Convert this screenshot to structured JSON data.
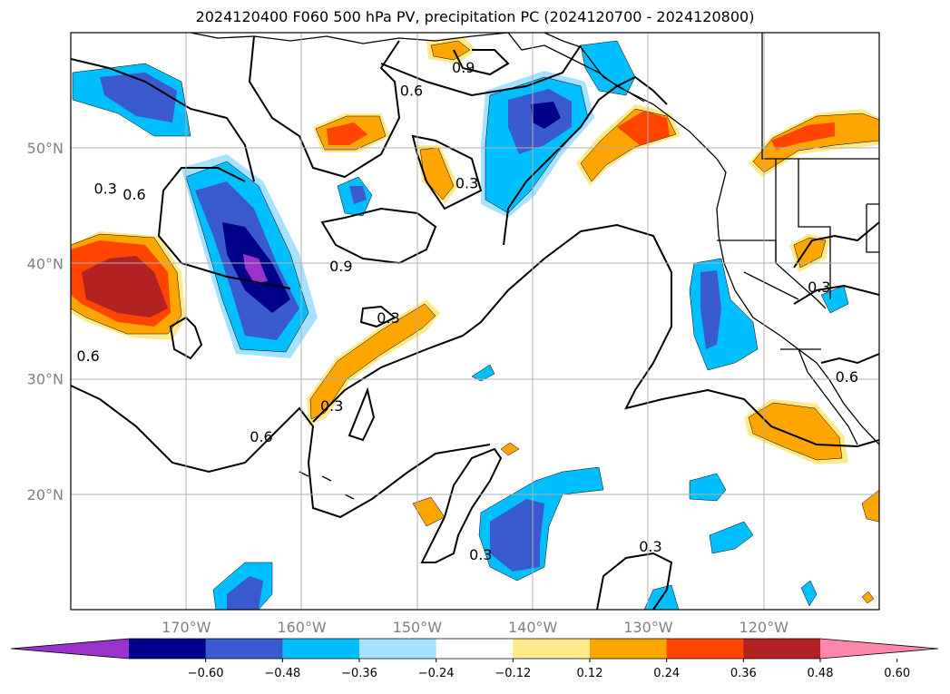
{
  "title": "2024120400 F060 500 hPa PV, precipitation PC (2024120700 - 2024120800)",
  "map": {
    "lon_range": [
      -180,
      -110
    ],
    "lat_range": [
      10,
      60
    ],
    "lon_ticks": [
      {
        "value": -170,
        "label": "170°W"
      },
      {
        "value": -160,
        "label": "160°W"
      },
      {
        "value": -150,
        "label": "150°W"
      },
      {
        "value": -140,
        "label": "140°W"
      },
      {
        "value": -130,
        "label": "130°W"
      },
      {
        "value": -120,
        "label": "120°W"
      }
    ],
    "lat_ticks": [
      {
        "value": 20,
        "label": "20°N"
      },
      {
        "value": 30,
        "label": "30°N"
      },
      {
        "value": 40,
        "label": "40°N"
      },
      {
        "value": 50,
        "label": "50°N"
      }
    ],
    "grid": true,
    "contour_labels": [
      {
        "text": "0.9",
        "lon": -146,
        "lat": 57
      },
      {
        "text": "0.6",
        "lon": -150.5,
        "lat": 55
      },
      {
        "text": "0.3",
        "lon": -177,
        "lat": 46.5
      },
      {
        "text": "0.6",
        "lon": -174.5,
        "lat": 46
      },
      {
        "text": "0.3",
        "lon": -145.7,
        "lat": 47
      },
      {
        "text": "0.9",
        "lon": -156.6,
        "lat": 39.8
      },
      {
        "text": "0.3",
        "lon": -152.5,
        "lat": 35.3
      },
      {
        "text": "0.6",
        "lon": -178.5,
        "lat": 32
      },
      {
        "text": "0.6",
        "lon": -163.5,
        "lat": 25
      },
      {
        "text": "0.3",
        "lon": -157.4,
        "lat": 27.7
      },
      {
        "text": "0.3",
        "lon": -144.5,
        "lat": 14.8
      },
      {
        "text": "0.3",
        "lon": -129.8,
        "lat": 15.5
      },
      {
        "text": "0.3",
        "lon": -115.2,
        "lat": 38
      },
      {
        "text": "0.6",
        "lon": -112.8,
        "lat": 30.2
      }
    ]
  },
  "colorbar": {
    "colors": [
      "#9933cc",
      "#00008b",
      "#3a5bd0",
      "#00bfff",
      "#a6e1ff",
      "#ffffff",
      "#ffea8a",
      "#ffa500",
      "#ff4500",
      "#b22222",
      "#ff88aa"
    ],
    "ticks": [
      "−0.60",
      "−0.48",
      "−0.36",
      "−0.24",
      "−0.12",
      "0.12",
      "0.24",
      "0.36",
      "0.48",
      "0.60"
    ]
  }
}
